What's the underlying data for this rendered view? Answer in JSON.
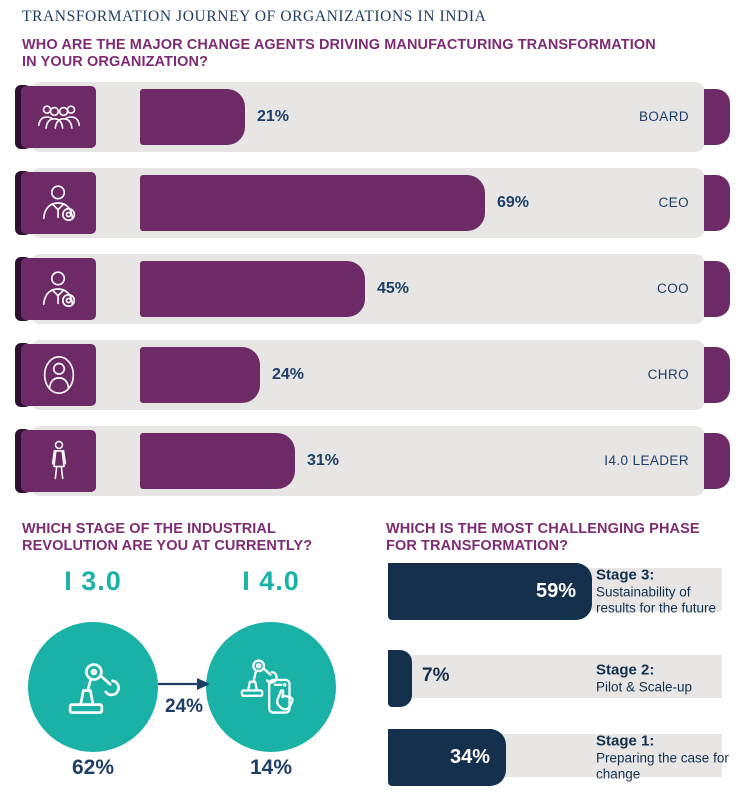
{
  "title": "TRANSFORMATION JOURNEY OF ORGANIZATIONS IN INDIA",
  "colors": {
    "purple": "#6d2a66",
    "question_purple": "#7d2b73",
    "navy_text": "#1f3e66",
    "navy_bar": "#14304d",
    "teal": "#1ab2a6",
    "row_gray": "#e7e6e4",
    "accent_dark": "#2b1030",
    "white": "#ffffff"
  },
  "sections": {
    "change_agents": {
      "question": "WHO ARE THE MAJOR CHANGE AGENTS DRIVING MANUFACTURING TRANSFORMATION IN YOUR ORGANIZATION?",
      "rows": [
        {
          "label": "BOARD",
          "value": 21,
          "value_label": "21%",
          "icon": "board-icon"
        },
        {
          "label": "CEO",
          "value": 69,
          "value_label": "69%",
          "icon": "ceo-icon"
        },
        {
          "label": "COO",
          "value": 45,
          "value_label": "45%",
          "icon": "coo-icon"
        },
        {
          "label": "CHRO",
          "value": 24,
          "value_label": "24%",
          "icon": "chro-icon"
        },
        {
          "label": "I4.0 LEADER",
          "value": 31,
          "value_label": "31%",
          "icon": "i40-leader-icon"
        }
      ]
    },
    "industrial_stage": {
      "question": "WHICH STAGE OF THE INDUSTRIAL REVOLUTION ARE YOU AT CURRENTLY?",
      "items": [
        {
          "label": "I 3.0",
          "value": 62,
          "value_label": "62%",
          "icon": "robot-arm-icon"
        },
        {
          "label": "I 4.0",
          "value": 14,
          "value_label": "14%",
          "icon": "robot-arm-smartphone-icon"
        }
      ],
      "transition": {
        "value": 24,
        "value_label": "24%"
      }
    },
    "challenging_phase": {
      "question": "WHICH IS THE MOST CHALLENGING PHASE FOR TRANSFORMATION?",
      "rows": [
        {
          "stage": "Stage 3:",
          "desc": "Sustainability of results for the future",
          "value": 59,
          "value_label": "59%"
        },
        {
          "stage": "Stage 2:",
          "desc": "Pilot & Scale-up",
          "value": 7,
          "value_label": "7%"
        },
        {
          "stage": "Stage 1:",
          "desc": "Preparing the case for change",
          "value": 34,
          "value_label": "34%"
        }
      ]
    }
  },
  "chart_data": [
    {
      "type": "bar",
      "orientation": "horizontal",
      "title": "WHO ARE THE MAJOR CHANGE AGENTS DRIVING MANUFACTURING TRANSFORMATION IN YOUR ORGANIZATION?",
      "categories": [
        "BOARD",
        "CEO",
        "COO",
        "CHRO",
        "I4.0 LEADER"
      ],
      "values": [
        21,
        69,
        45,
        24,
        31
      ],
      "unit": "%",
      "xlim": [
        0,
        100
      ],
      "bar_color": "#6d2a66",
      "legend": "none",
      "grid": false
    },
    {
      "type": "pictogram",
      "title": "WHICH STAGE OF THE INDUSTRIAL REVOLUTION ARE YOU AT CURRENTLY?",
      "categories": [
        "I 3.0",
        "Transitioning I 3.0 to I 4.0",
        "I 4.0"
      ],
      "values": [
        62,
        24,
        14
      ],
      "unit": "%",
      "icon_color": "#1ab2a6",
      "grid": false
    },
    {
      "type": "bar",
      "orientation": "horizontal",
      "title": "WHICH IS THE MOST CHALLENGING PHASE FOR TRANSFORMATION?",
      "categories": [
        "Stage 3: Sustainability of results for the future",
        "Stage 2: Pilot & Scale-up",
        "Stage 1: Preparing the case for change"
      ],
      "values": [
        59,
        7,
        34
      ],
      "unit": "%",
      "xlim": [
        0,
        100
      ],
      "bar_color": "#14304d",
      "legend": "none",
      "grid": false
    }
  ]
}
